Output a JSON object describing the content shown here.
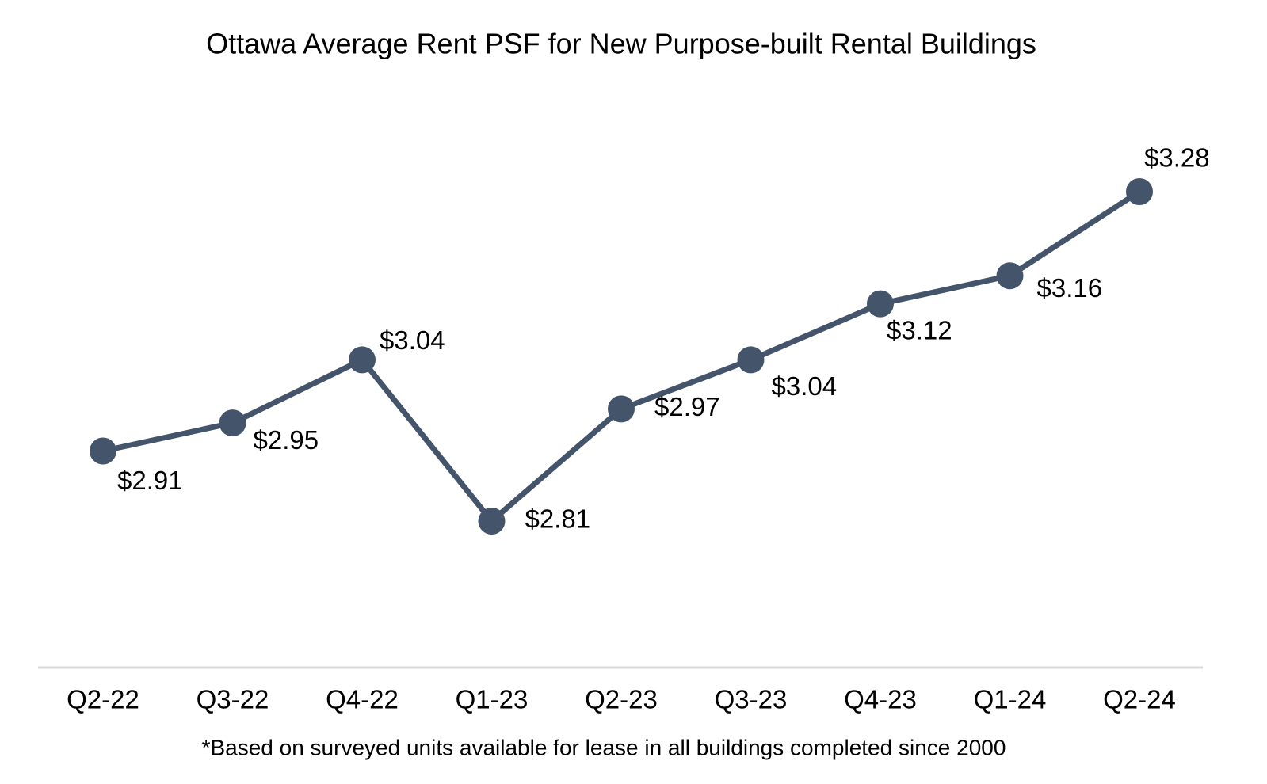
{
  "chart_data": {
    "type": "line",
    "title": "Ottawa Average Rent PSF for New Purpose-built Rental Buildings",
    "categories": [
      "Q2-22",
      "Q3-22",
      "Q4-22",
      "Q1-23",
      "Q2-23",
      "Q3-23",
      "Q4-23",
      "Q1-24",
      "Q2-24"
    ],
    "series": [
      {
        "color": "#44546a",
        "values": [
          2.91,
          2.95,
          3.04,
          2.81,
          2.97,
          3.04,
          3.12,
          3.16,
          3.28
        ],
        "value_labels": [
          "$2.91",
          "$2.95",
          "$3.04",
          "$2.81",
          "$2.97",
          "$3.04",
          "$3.12",
          "$3.16",
          "$3.28"
        ]
      }
    ],
    "note": "*Based on surveyed units available for lease in all buildings completed since 2000"
  }
}
